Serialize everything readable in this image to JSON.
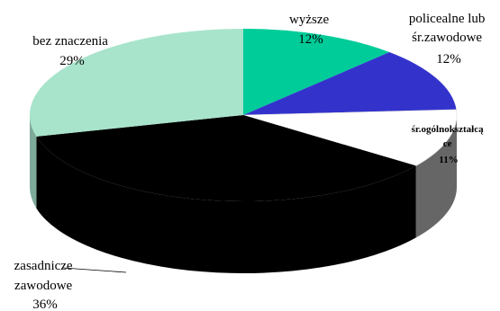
{
  "chart_data": {
    "type": "pie",
    "style": "3d",
    "legend": "none",
    "slices": [
      {
        "label_lines": [
          "wyższe"
        ],
        "value_label": "12%",
        "value": 12,
        "color": "#00CC99"
      },
      {
        "label_lines": [
          "policealne lub",
          "śr.zawodowe"
        ],
        "value_label": "12%",
        "value": 12,
        "color": "#3333CC"
      },
      {
        "label_lines": [
          "śr.ogólnokształcą",
          "ce"
        ],
        "value_label": "11%",
        "value": 11,
        "color": "#FFFFFF"
      },
      {
        "label_lines": [
          "zasadnicze",
          "zawodowe"
        ],
        "value_label": "36%",
        "value": 36,
        "color": "#000000"
      },
      {
        "label_lines": [
          "bez znaczenia"
        ],
        "value_label": "29%",
        "value": 29,
        "color": "#A8E4CC"
      }
    ]
  }
}
